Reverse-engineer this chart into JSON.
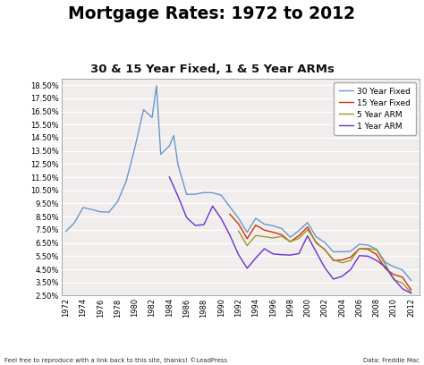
{
  "title": "Mortgage Rates: 1972 to 2012",
  "subtitle": "30 & 15 Year Fixed, 1 & 5 Year ARMs",
  "footer_left": "Feel free to reproduce with a link back to this site, thanks! ©LeadPress",
  "footer_right": "Data: Freddie Mac",
  "ylabel_ticks": [
    "2.50%",
    "3.50%",
    "4.50%",
    "5.50%",
    "6.50%",
    "7.50%",
    "8.50%",
    "9.50%",
    "10.50%",
    "11.50%",
    "12.50%",
    "13.50%",
    "14.50%",
    "15.50%",
    "16.50%",
    "17.50%",
    "18.50%"
  ],
  "ylim": [
    2.5,
    19.0
  ],
  "yticks": [
    2.5,
    3.5,
    4.5,
    5.5,
    6.5,
    7.5,
    8.5,
    9.5,
    10.5,
    11.5,
    12.5,
    13.5,
    14.5,
    15.5,
    16.5,
    17.5,
    18.5
  ],
  "xticks": [
    1972,
    1974,
    1976,
    1978,
    1980,
    1982,
    1984,
    1986,
    1988,
    1990,
    1992,
    1994,
    1996,
    1998,
    2000,
    2002,
    2004,
    2006,
    2008,
    2010,
    2012
  ],
  "xlim": [
    1971.5,
    2013
  ],
  "bg_color": "#ffffff",
  "plot_bg_color": "#f2eded",
  "grid_color": "#ffffff",
  "line_colors": {
    "30yr": "#6699cc",
    "15yr": "#cc3300",
    "5yr": "#999933",
    "1yr": "#6633cc"
  },
  "data_30yr": [
    [
      1972,
      7.38
    ],
    [
      1973,
      8.04
    ],
    [
      1974,
      9.19
    ],
    [
      1975,
      9.05
    ],
    [
      1976,
      8.87
    ],
    [
      1977,
      8.85
    ],
    [
      1978,
      9.64
    ],
    [
      1979,
      11.2
    ],
    [
      1980,
      13.74
    ],
    [
      1981,
      16.63
    ],
    [
      1982,
      16.04
    ],
    [
      1982.5,
      18.45
    ],
    [
      1983,
      13.24
    ],
    [
      1984,
      13.88
    ],
    [
      1984.5,
      14.67
    ],
    [
      1985,
      12.43
    ],
    [
      1986,
      10.19
    ],
    [
      1987,
      10.21
    ],
    [
      1988,
      10.34
    ],
    [
      1989,
      10.32
    ],
    [
      1990,
      10.13
    ],
    [
      1991,
      9.25
    ],
    [
      1992,
      8.39
    ],
    [
      1993,
      7.31
    ],
    [
      1994,
      8.38
    ],
    [
      1995,
      7.93
    ],
    [
      1996,
      7.81
    ],
    [
      1997,
      7.6
    ],
    [
      1998,
      6.94
    ],
    [
      1999,
      7.44
    ],
    [
      2000,
      8.05
    ],
    [
      2001,
      6.97
    ],
    [
      2002,
      6.54
    ],
    [
      2003,
      5.83
    ],
    [
      2004,
      5.84
    ],
    [
      2005,
      5.87
    ],
    [
      2006,
      6.41
    ],
    [
      2007,
      6.34
    ],
    [
      2008,
      6.03
    ],
    [
      2009,
      5.04
    ],
    [
      2010,
      4.69
    ],
    [
      2011,
      4.45
    ],
    [
      2012,
      3.66
    ]
  ],
  "data_15yr": [
    [
      1991,
      8.69
    ],
    [
      1992,
      7.96
    ],
    [
      1993,
      6.83
    ],
    [
      1994,
      7.86
    ],
    [
      1995,
      7.48
    ],
    [
      1996,
      7.32
    ],
    [
      1997,
      7.13
    ],
    [
      1998,
      6.59
    ],
    [
      1999,
      7.06
    ],
    [
      2000,
      7.72
    ],
    [
      2001,
      6.5
    ],
    [
      2002,
      6.01
    ],
    [
      2003,
      5.17
    ],
    [
      2004,
      5.21
    ],
    [
      2005,
      5.42
    ],
    [
      2006,
      6.07
    ],
    [
      2007,
      6.03
    ],
    [
      2008,
      5.62
    ],
    [
      2009,
      4.57
    ],
    [
      2010,
      4.1
    ],
    [
      2011,
      3.9
    ],
    [
      2012,
      2.93
    ]
  ],
  "data_5yr": [
    [
      1992,
      7.42
    ],
    [
      1993,
      6.3
    ],
    [
      1994,
      7.07
    ],
    [
      1995,
      6.98
    ],
    [
      1996,
      6.88
    ],
    [
      1997,
      7.01
    ],
    [
      1998,
      6.6
    ],
    [
      1999,
      6.85
    ],
    [
      2000,
      7.52
    ],
    [
      2001,
      6.57
    ],
    [
      2002,
      5.98
    ],
    [
      2003,
      5.23
    ],
    [
      2004,
      5.0
    ],
    [
      2005,
      5.17
    ],
    [
      2006,
      6.08
    ],
    [
      2007,
      6.09
    ],
    [
      2008,
      5.98
    ],
    [
      2009,
      4.89
    ],
    [
      2010,
      3.72
    ],
    [
      2011,
      3.45
    ],
    [
      2012,
      2.73
    ]
  ],
  "data_1yr": [
    [
      1984,
      11.51
    ],
    [
      1985,
      10.05
    ],
    [
      1986,
      8.43
    ],
    [
      1987,
      7.83
    ],
    [
      1988,
      7.9
    ],
    [
      1989,
      9.3
    ],
    [
      1990,
      8.36
    ],
    [
      1991,
      7.1
    ],
    [
      1992,
      5.62
    ],
    [
      1993,
      4.58
    ],
    [
      1994,
      5.36
    ],
    [
      1995,
      6.07
    ],
    [
      1996,
      5.67
    ],
    [
      1997,
      5.61
    ],
    [
      1998,
      5.58
    ],
    [
      1999,
      5.7
    ],
    [
      2000,
      7.04
    ],
    [
      2001,
      5.82
    ],
    [
      2002,
      4.62
    ],
    [
      2003,
      3.76
    ],
    [
      2004,
      3.97
    ],
    [
      2005,
      4.49
    ],
    [
      2006,
      5.54
    ],
    [
      2007,
      5.5
    ],
    [
      2008,
      5.17
    ],
    [
      2009,
      4.69
    ],
    [
      2010,
      3.77
    ],
    [
      2011,
      3.02
    ],
    [
      2012,
      2.69
    ]
  ]
}
